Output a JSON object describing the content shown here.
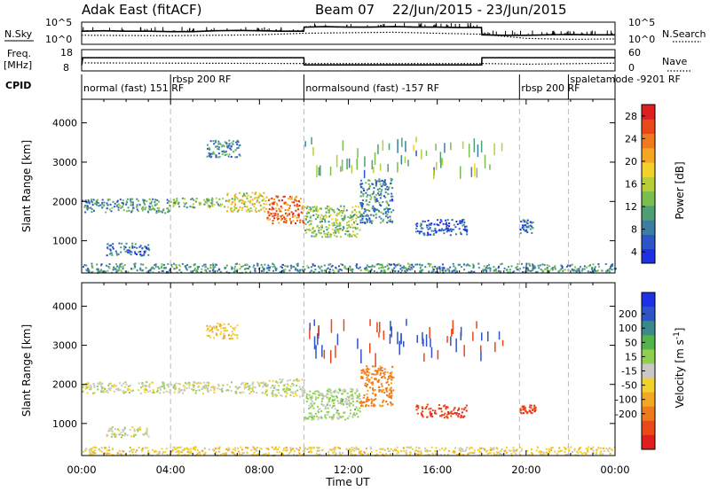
{
  "header": {
    "radar": "Adak East (fitACF)",
    "beam": "Beam 07",
    "date_range": "22/Jun/2015 - 23/Jun/2015"
  },
  "chart_data": [
    {
      "type": "line",
      "panel": "noise",
      "left_label": "N.Sky",
      "right_label": "N.Search",
      "ytick_labels": [
        "10^5",
        "10^0"
      ],
      "series": [
        {
          "name": "N.Sky",
          "style": "solid",
          "x": [
            0,
            1,
            2,
            3,
            4,
            5,
            6,
            7,
            8,
            9,
            9.99,
            10.01,
            11,
            12,
            13,
            14,
            15,
            16,
            17,
            17.99,
            18.01,
            19,
            20,
            21,
            22,
            23,
            24
          ],
          "level": [
            0.6,
            0.62,
            0.6,
            0.6,
            0.58,
            0.58,
            0.62,
            0.64,
            0.62,
            0.6,
            0.6,
            0.8,
            0.82,
            0.8,
            0.8,
            0.82,
            0.8,
            0.8,
            0.78,
            0.78,
            0.42,
            0.4,
            0.4,
            0.42,
            0.44,
            0.42,
            0.42
          ]
        },
        {
          "name": "N.Search",
          "style": "dotted",
          "x": [
            0,
            4,
            8,
            10,
            14,
            18,
            20,
            22,
            24
          ],
          "level": [
            0.4,
            0.38,
            0.42,
            0.5,
            0.55,
            0.45,
            0.25,
            0.2,
            0.22
          ]
        }
      ]
    },
    {
      "type": "line",
      "panel": "frequency",
      "left_label": "Freq.",
      "left_unit": "[MHz]",
      "right_label": "Nave",
      "left_ticks": [
        "18",
        "8"
      ],
      "right_ticks": [
        "60",
        "0"
      ],
      "series": [
        {
          "name": "Freq.",
          "style": "solid",
          "x": [
            0,
            0.05,
            10,
            10.01,
            18,
            18.01,
            24
          ],
          "y_mhz": [
            10.5,
            14.3,
            14.3,
            10.6,
            10.6,
            14.3,
            14.3
          ]
        },
        {
          "name": "Nave",
          "style": "dotted",
          "x": [
            0,
            10,
            10.01,
            18,
            18.01,
            20,
            24
          ],
          "y_nave": [
            22,
            20,
            20,
            20,
            20,
            18,
            21
          ]
        }
      ]
    },
    {
      "type": "table",
      "panel": "cpid",
      "label": "CPID",
      "entries": [
        {
          "start": 0,
          "text": "normal (fast) 151 RF"
        },
        {
          "start": 4,
          "text": "rbsp 200 RF"
        },
        {
          "start": 10,
          "text": "normalsound (fast) -157 RF"
        },
        {
          "start": 19.7,
          "text": "rbsp 200 RF"
        },
        {
          "start": 21.9,
          "text": "spaletamode -9201 RF"
        }
      ]
    },
    {
      "type": "heatmap",
      "panel": "power",
      "ylabel": "Slant Range [km]",
      "yticks": [
        1000,
        2000,
        3000,
        4000
      ],
      "ylim": [
        180,
        4600
      ],
      "colorbar": {
        "label": "Power [dB]",
        "ticks": [
          4,
          8,
          12,
          16,
          20,
          24,
          28
        ],
        "colors": [
          "#1e2fe6",
          "#2e55c8",
          "#3a7fa2",
          "#4e9e76",
          "#79be4e",
          "#b6cf36",
          "#f2d22a",
          "#f5a623",
          "#ef7a1e",
          "#e8481a",
          "#df1f1f"
        ]
      },
      "regions": [
        {
          "x0": 0.0,
          "x1": 4.0,
          "y0": 1720,
          "y1": 2080,
          "value": 10
        },
        {
          "x0": 4.0,
          "x1": 6.5,
          "y0": 1850,
          "y1": 2100,
          "value": 13
        },
        {
          "x0": 6.5,
          "x1": 8.3,
          "y0": 1750,
          "y1": 2250,
          "value": 17
        },
        {
          "x0": 8.3,
          "x1": 10.0,
          "y0": 1450,
          "y1": 2150,
          "value": 24
        },
        {
          "x0": 10.0,
          "x1": 12.5,
          "y0": 1100,
          "y1": 1900,
          "value": 14
        },
        {
          "x0": 12.5,
          "x1": 14.0,
          "y0": 1450,
          "y1": 2600,
          "value": 9
        },
        {
          "x0": 1.1,
          "x1": 3.0,
          "y0": 620,
          "y1": 940,
          "value": 7
        },
        {
          "x0": 5.6,
          "x1": 7.1,
          "y0": 3150,
          "y1": 3600,
          "value": 9
        },
        {
          "x0": 15.0,
          "x1": 17.3,
          "y0": 1150,
          "y1": 1550,
          "value": 6
        },
        {
          "x0": 19.7,
          "x1": 20.3,
          "y0": 1200,
          "y1": 1550,
          "value": 8
        },
        {
          "x0": 0.0,
          "x1": 24.0,
          "y0": 180,
          "y1": 420,
          "value": 10
        }
      ]
    },
    {
      "type": "heatmap",
      "panel": "velocity",
      "ylabel": "Slant Range [km]",
      "yticks": [
        1000,
        2000,
        3000,
        4000
      ],
      "ylim": [
        180,
        4600
      ],
      "xticks": [
        "00:00",
        "04:00",
        "08:00",
        "12:00",
        "16:00",
        "20:00",
        "00:00"
      ],
      "xlabel": "Time UT",
      "colorbar": {
        "label": "Velocity [m s^-1]",
        "ticks": [
          200,
          100,
          50,
          15,
          -15,
          -50,
          -100,
          -200
        ],
        "colors": [
          "#1e2fe6",
          "#2e55c8",
          "#3a8a8c",
          "#52b44a",
          "#8fd14f",
          "#c8c8c8",
          "#f2d22a",
          "#f5a623",
          "#ef7a1e",
          "#e8481a",
          "#df1f1f"
        ]
      },
      "regions": [
        {
          "x0": 0.0,
          "x1": 8.3,
          "y0": 1780,
          "y1": 2080,
          "value": 0
        },
        {
          "x0": 8.3,
          "x1": 10.0,
          "y0": 1700,
          "y1": 2150,
          "value": 0
        },
        {
          "x0": 10.0,
          "x1": 12.5,
          "y0": 1100,
          "y1": 1900,
          "value": 25
        },
        {
          "x0": 12.5,
          "x1": 14.0,
          "y0": 1450,
          "y1": 2500,
          "value": -120
        },
        {
          "x0": 1.1,
          "x1": 3.0,
          "y0": 650,
          "y1": 920,
          "value": 0
        },
        {
          "x0": 5.6,
          "x1": 7.0,
          "y0": 3200,
          "y1": 3600,
          "value": -40
        },
        {
          "x0": 15.0,
          "x1": 17.3,
          "y0": 1150,
          "y1": 1500,
          "value": -180
        },
        {
          "x0": 19.7,
          "x1": 20.4,
          "y0": 1250,
          "y1": 1500,
          "value": -190
        },
        {
          "x0": 0.0,
          "x1": 24.0,
          "y0": 180,
          "y1": 400,
          "value": -30
        }
      ]
    }
  ]
}
